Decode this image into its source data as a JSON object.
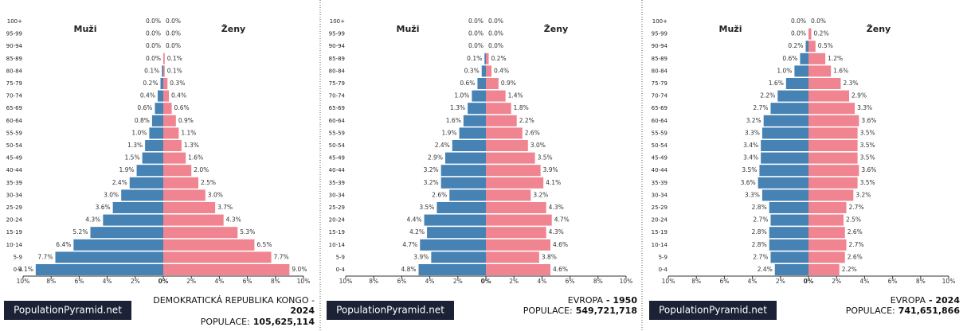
{
  "chart_data": [
    {
      "type": "population-pyramid",
      "title": "DEMOKRATICKÁ REPUBLIKA KONGO -",
      "year": "2024",
      "population_label": "POPULACE:",
      "population": {
        "value": 105625114,
        "label": "105,625,114"
      },
      "brand": "PopulationPyramid.net",
      "categories": [
        "100+",
        "95-99",
        "90-94",
        "85-89",
        "80-84",
        "75-79",
        "70-74",
        "65-69",
        "60-64",
        "55-59",
        "50-54",
        "45-49",
        "40-44",
        "35-39",
        "30-34",
        "25-29",
        "20-24",
        "15-19",
        "10-14",
        "5-9",
        "0-4"
      ],
      "xlim": [
        0,
        10
      ],
      "xticks_male": [
        {
          "value": 10,
          "label": "10%"
        },
        {
          "value": 8,
          "label": "8%"
        },
        {
          "value": 6,
          "label": "6%"
        },
        {
          "value": 4,
          "label": "4%"
        },
        {
          "value": 2,
          "label": "2%"
        }
      ],
      "xticks_female": [
        {
          "value": 0,
          "label": "0%"
        },
        {
          "value": 2,
          "label": "2%"
        },
        {
          "value": 4,
          "label": "4%"
        },
        {
          "value": 6,
          "label": "6%"
        },
        {
          "value": 8,
          "label": "8%"
        },
        {
          "value": 10,
          "label": "10%"
        }
      ],
      "series": [
        {
          "name": "Muži",
          "color": "#4682b4",
          "values": [
            0.0,
            0.0,
            0.0,
            0.0,
            0.1,
            0.2,
            0.4,
            0.6,
            0.8,
            1.0,
            1.3,
            1.5,
            1.9,
            2.4,
            3.0,
            3.6,
            4.3,
            5.2,
            6.4,
            7.7,
            9.1
          ],
          "value_labels": [
            "0.0%",
            "0.0%",
            "0.0%",
            "0.0%",
            "0.1%",
            "0.2%",
            "0.4%",
            "0.6%",
            "0.8%",
            "1.0%",
            "1.3%",
            "1.5%",
            "1.9%",
            "2.4%",
            "3.0%",
            "3.6%",
            "4.3%",
            "5.2%",
            "6.4%",
            "7.7%",
            "9.1%"
          ]
        },
        {
          "name": "Ženy",
          "color": "#f08491",
          "values": [
            0.0,
            0.0,
            0.0,
            0.1,
            0.1,
            0.3,
            0.4,
            0.6,
            0.9,
            1.1,
            1.3,
            1.6,
            2.0,
            2.5,
            3.0,
            3.7,
            4.3,
            5.3,
            6.5,
            7.7,
            9.0
          ],
          "value_labels": [
            "0.0%",
            "0.0%",
            "0.0%",
            "0.1%",
            "0.1%",
            "0.3%",
            "0.4%",
            "0.6%",
            "0.9%",
            "1.1%",
            "1.3%",
            "1.6%",
            "2.0%",
            "2.5%",
            "3.0%",
            "3.7%",
            "4.3%",
            "5.3%",
            "6.5%",
            "7.7%",
            "9.0%"
          ]
        }
      ]
    },
    {
      "type": "population-pyramid",
      "title": "EVROPA",
      "year": "- 1950",
      "population_label": "POPULACE:",
      "population": {
        "value": 549721718,
        "label": "549,721,718"
      },
      "brand": "PopulationPyramid.net",
      "categories": [
        "100+",
        "95-99",
        "90-94",
        "85-89",
        "80-84",
        "75-79",
        "70-74",
        "65-69",
        "60-64",
        "55-59",
        "50-54",
        "45-49",
        "40-44",
        "35-39",
        "30-34",
        "25-29",
        "20-24",
        "15-19",
        "10-14",
        "5-9",
        "0-4"
      ],
      "xlim": [
        0,
        10
      ],
      "xticks_male": [
        {
          "value": 10,
          "label": "10%"
        },
        {
          "value": 8,
          "label": "8%"
        },
        {
          "value": 6,
          "label": "6%"
        },
        {
          "value": 4,
          "label": "4%"
        },
        {
          "value": 2,
          "label": "2%"
        }
      ],
      "xticks_female": [
        {
          "value": 0,
          "label": "0%"
        },
        {
          "value": 2,
          "label": "2%"
        },
        {
          "value": 4,
          "label": "4%"
        },
        {
          "value": 6,
          "label": "6%"
        },
        {
          "value": 8,
          "label": "8%"
        },
        {
          "value": 10,
          "label": "10%"
        }
      ],
      "series": [
        {
          "name": "Muži",
          "color": "#4682b4",
          "values": [
            0.0,
            0.0,
            0.0,
            0.1,
            0.3,
            0.6,
            1.0,
            1.3,
            1.6,
            1.9,
            2.4,
            2.9,
            3.2,
            3.2,
            2.6,
            3.5,
            4.4,
            4.2,
            4.7,
            3.9,
            4.8
          ],
          "value_labels": [
            "0.0%",
            "0.0%",
            "0.0%",
            "0.1%",
            "0.3%",
            "0.6%",
            "1.0%",
            "1.3%",
            "1.6%",
            "1.9%",
            "2.4%",
            "2.9%",
            "3.2%",
            "3.2%",
            "2.6%",
            "3.5%",
            "4.4%",
            "4.2%",
            "4.7%",
            "3.9%",
            "4.8%"
          ]
        },
        {
          "name": "Ženy",
          "color": "#f08491",
          "values": [
            0.0,
            0.0,
            0.0,
            0.2,
            0.4,
            0.9,
            1.4,
            1.8,
            2.2,
            2.6,
            3.0,
            3.5,
            3.9,
            4.1,
            3.2,
            4.3,
            4.7,
            4.3,
            4.6,
            3.8,
            4.6
          ],
          "value_labels": [
            "0.0%",
            "0.0%",
            "0.0%",
            "0.2%",
            "0.4%",
            "0.9%",
            "1.4%",
            "1.8%",
            "2.2%",
            "2.6%",
            "3.0%",
            "3.5%",
            "3.9%",
            "4.1%",
            "3.2%",
            "4.3%",
            "4.7%",
            "4.3%",
            "4.6%",
            "3.8%",
            "4.6%"
          ]
        }
      ]
    },
    {
      "type": "population-pyramid",
      "title": "EVROPA",
      "year": "- 2024",
      "population_label": "POPULACE:",
      "population": {
        "value": 741651866,
        "label": "741,651,866"
      },
      "brand": "PopulationPyramid.net",
      "categories": [
        "100+",
        "95-99",
        "90-94",
        "85-89",
        "80-84",
        "75-79",
        "70-74",
        "65-69",
        "60-64",
        "55-59",
        "50-54",
        "45-49",
        "40-44",
        "35-39",
        "30-34",
        "25-29",
        "20-24",
        "15-19",
        "10-14",
        "5-9",
        "0-4"
      ],
      "xlim": [
        0,
        10
      ],
      "xticks_male": [
        {
          "value": 10,
          "label": "10%"
        },
        {
          "value": 8,
          "label": "8%"
        },
        {
          "value": 6,
          "label": "6%"
        },
        {
          "value": 4,
          "label": "4%"
        },
        {
          "value": 2,
          "label": "2%"
        }
      ],
      "xticks_female": [
        {
          "value": 0,
          "label": "0%"
        },
        {
          "value": 2,
          "label": "2%"
        },
        {
          "value": 4,
          "label": "4%"
        },
        {
          "value": 6,
          "label": "6%"
        },
        {
          "value": 8,
          "label": "8%"
        },
        {
          "value": 10,
          "label": "10%"
        }
      ],
      "series": [
        {
          "name": "Muži",
          "color": "#4682b4",
          "values": [
            0.0,
            0.0,
            0.2,
            0.6,
            1.0,
            1.6,
            2.2,
            2.7,
            3.2,
            3.3,
            3.4,
            3.4,
            3.5,
            3.6,
            3.3,
            2.8,
            2.7,
            2.8,
            2.8,
            2.7,
            2.4
          ],
          "value_labels": [
            "0.0%",
            "0.0%",
            "0.2%",
            "0.6%",
            "1.0%",
            "1.6%",
            "2.2%",
            "2.7%",
            "3.2%",
            "3.3%",
            "3.4%",
            "3.4%",
            "3.5%",
            "3.6%",
            "3.3%",
            "2.8%",
            "2.7%",
            "2.8%",
            "2.8%",
            "2.7%",
            "2.4%"
          ]
        },
        {
          "name": "Ženy",
          "color": "#f08491",
          "values": [
            0.0,
            0.2,
            0.5,
            1.2,
            1.6,
            2.3,
            2.9,
            3.3,
            3.6,
            3.5,
            3.5,
            3.5,
            3.6,
            3.5,
            3.2,
            2.7,
            2.5,
            2.6,
            2.7,
            2.6,
            2.2
          ],
          "value_labels": [
            "0.0%",
            "0.2%",
            "0.5%",
            "1.2%",
            "1.6%",
            "2.3%",
            "2.9%",
            "3.3%",
            "3.6%",
            "3.5%",
            "3.5%",
            "3.5%",
            "3.6%",
            "3.5%",
            "3.2%",
            "2.7%",
            "2.5%",
            "2.6%",
            "2.7%",
            "2.6%",
            "2.2%"
          ]
        }
      ]
    }
  ]
}
